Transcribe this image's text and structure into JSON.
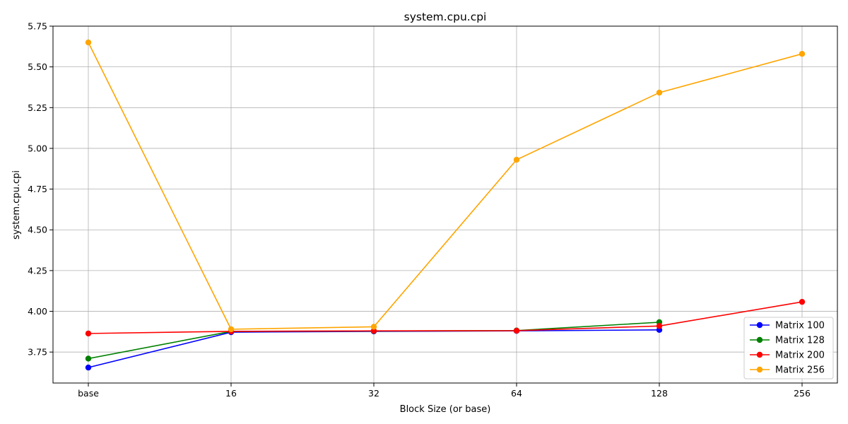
{
  "chart_data": {
    "type": "line",
    "title": "system.cpu.cpi",
    "xlabel": "Block Size (or base)",
    "ylabel": "system.cpu.cpi",
    "categories": [
      "base",
      "16",
      "32",
      "64",
      "128",
      "256"
    ],
    "ylim": [
      3.56,
      5.75
    ],
    "yticks": [
      3.75,
      4.0,
      4.25,
      4.5,
      4.75,
      5.0,
      5.25,
      5.5,
      5.75
    ],
    "ytick_labels": [
      "3.75",
      "4.00",
      "4.25",
      "4.50",
      "4.75",
      "5.00",
      "5.25",
      "5.50",
      "5.75"
    ],
    "grid": true,
    "legend_position": "bottom-right",
    "series": [
      {
        "name": "Matrix 100",
        "color": "#0000ff",
        "values": [
          3.655,
          3.872,
          3.877,
          3.88,
          3.886,
          null
        ]
      },
      {
        "name": "Matrix 128",
        "color": "#008000",
        "values": [
          3.71,
          3.877,
          3.879,
          3.882,
          3.933,
          null
        ]
      },
      {
        "name": "Matrix 200",
        "color": "#ff0000",
        "values": [
          3.864,
          3.877,
          3.88,
          3.881,
          3.91,
          4.058
        ]
      },
      {
        "name": "Matrix 256",
        "color": "#ffa500",
        "values": [
          5.65,
          3.89,
          3.905,
          4.93,
          5.342,
          5.58
        ]
      }
    ]
  }
}
